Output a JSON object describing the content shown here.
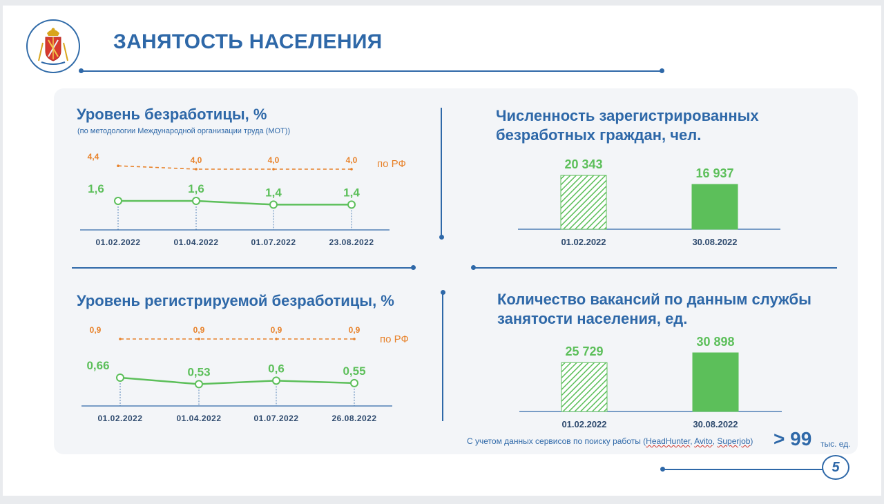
{
  "header": {
    "title": "ЗАНЯТОСТЬ НАСЕЛЕНИЯ"
  },
  "page_number": "5",
  "colors": {
    "primary": "#2e68a8",
    "green": "#5cbf5a",
    "orange": "#e8822a"
  },
  "footnote": {
    "prefix": "С учетом данных сервисов по поиску работы (",
    "services": [
      "HeadHunter",
      "Avito",
      "Superjob"
    ],
    "suffix": ")",
    "big_value": "> 99",
    "unit": "тыс. ед."
  },
  "chart_data": [
    {
      "type": "line",
      "title": "Уровень безработицы, %",
      "subtitle": "(по методологии Международной организации труда (МОТ))",
      "categories": [
        "01.02.2022",
        "01.04.2022",
        "01.07.2022",
        "23.08.2022"
      ],
      "series": [
        {
          "name": "",
          "values": [
            1.6,
            1.6,
            1.4,
            1.4
          ],
          "labels": [
            "1,6",
            "1,6",
            "1,4",
            "1,4"
          ],
          "color": "#5cbf5a"
        },
        {
          "name": "по РФ",
          "values": [
            4.4,
            4.0,
            4.0,
            4.0
          ],
          "labels": [
            "4,4",
            "4,0",
            "4,0",
            "4,0"
          ],
          "color": "#e8822a",
          "dashed": true
        }
      ]
    },
    {
      "type": "bar",
      "title": "Численность зарегистрированных безработных граждан, чел.",
      "categories": [
        "01.02.2022",
        "30.08.2022"
      ],
      "values": [
        20343,
        16937
      ],
      "labels": [
        "20 343",
        "16 937"
      ],
      "patterns": [
        "hatched",
        "solid"
      ],
      "color": "#5cbf5a"
    },
    {
      "type": "line",
      "title": "Уровень регистрируемой безработицы, %",
      "categories": [
        "01.02.2022",
        "01.04.2022",
        "01.07.2022",
        "26.08.2022"
      ],
      "series": [
        {
          "name": "",
          "values": [
            0.66,
            0.53,
            0.6,
            0.55
          ],
          "labels": [
            "0,66",
            "0,53",
            "0,6",
            "0,55"
          ],
          "color": "#5cbf5a"
        },
        {
          "name": "по РФ",
          "values": [
            0.9,
            0.9,
            0.9,
            0.9
          ],
          "labels": [
            "0,9",
            "0,9",
            "0,9",
            "0,9"
          ],
          "color": "#e8822a",
          "dashed": true
        }
      ]
    },
    {
      "type": "bar",
      "title": "Количество вакансий по данным службы занятости населения, ед.",
      "categories": [
        "01.02.2022",
        "30.08.2022"
      ],
      "values": [
        25729,
        30898
      ],
      "labels": [
        "25 729",
        "30 898"
      ],
      "patterns": [
        "hatched",
        "solid"
      ],
      "color": "#5cbf5a"
    }
  ]
}
